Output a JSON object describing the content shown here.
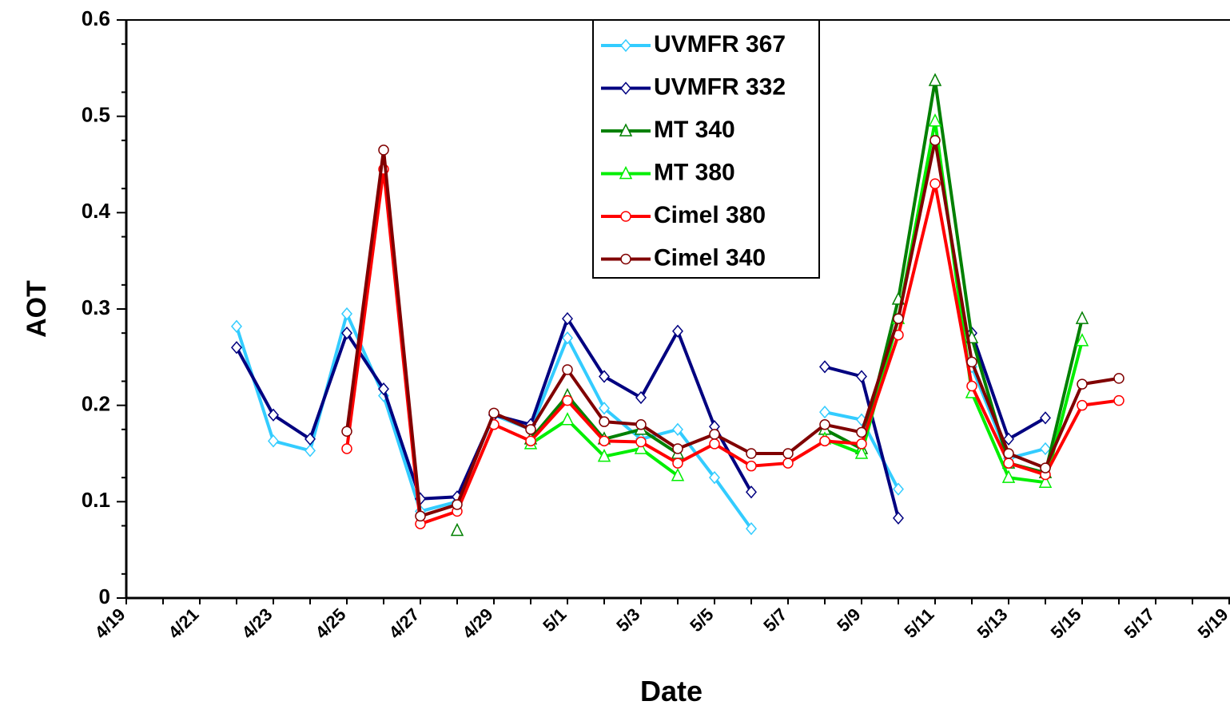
{
  "chart_data": {
    "type": "line",
    "x_label": "Date",
    "y_label": "AOT",
    "categories": [
      "4/19",
      null,
      "4/21",
      null,
      "4/23",
      null,
      "4/25",
      null,
      "4/27",
      null,
      "4/29",
      null,
      "5/1",
      null,
      "5/3",
      null,
      "5/5",
      null,
      "5/7",
      null,
      "5/9",
      null,
      "5/11",
      null,
      "5/13",
      null,
      "5/15",
      null,
      "5/17",
      null,
      "5/19"
    ],
    "ylim": [
      0,
      0.6
    ],
    "yticks": [
      0,
      0.1,
      0.2,
      0.3,
      0.4,
      0.5,
      0.6
    ],
    "legend": "top-center",
    "series": [
      {
        "name": "UVMFR 367",
        "color": "#33ccff",
        "marker": "diamond",
        "values": [
          null,
          null,
          null,
          0.282,
          0.163,
          0.153,
          0.295,
          0.21,
          0.09,
          0.1,
          0.19,
          0.175,
          0.27,
          0.197,
          0.165,
          0.175,
          0.125,
          0.072,
          null,
          0.193,
          0.185,
          0.113,
          null,
          0.24,
          0.145,
          0.155,
          null,
          null,
          null,
          null,
          null
        ]
      },
      {
        "name": "UVMFR 332",
        "color": "#000080",
        "marker": "diamond",
        "values": [
          null,
          null,
          null,
          0.26,
          0.19,
          0.165,
          0.275,
          0.217,
          0.103,
          0.105,
          0.19,
          0.18,
          0.29,
          0.23,
          0.208,
          0.277,
          0.178,
          0.11,
          null,
          0.24,
          0.23,
          0.083,
          null,
          0.275,
          0.165,
          0.187,
          null,
          null,
          null,
          null,
          null
        ]
      },
      {
        "name": "MT 340",
        "color": "#008000",
        "marker": "triangle",
        "values": [
          null,
          null,
          null,
          null,
          null,
          null,
          null,
          null,
          null,
          0.07,
          null,
          0.165,
          0.21,
          0.165,
          0.175,
          0.15,
          null,
          null,
          null,
          0.175,
          0.155,
          0.31,
          0.537,
          0.27,
          0.14,
          0.13,
          0.29,
          null,
          null,
          null,
          null
        ]
      },
      {
        "name": "MT 380",
        "color": "#00ee00",
        "marker": "triangle",
        "values": [
          null,
          null,
          null,
          null,
          null,
          null,
          null,
          null,
          null,
          null,
          null,
          0.16,
          0.185,
          0.147,
          0.155,
          0.127,
          null,
          null,
          null,
          0.165,
          0.15,
          0.29,
          0.495,
          0.213,
          0.125,
          0.12,
          0.267,
          null,
          null,
          null,
          null
        ]
      },
      {
        "name": "Cimel 380",
        "color": "#ff0000",
        "marker": "circle",
        "values": [
          null,
          null,
          null,
          null,
          null,
          null,
          0.155,
          0.445,
          0.077,
          0.09,
          0.18,
          0.163,
          0.205,
          0.163,
          0.162,
          0.14,
          0.16,
          0.137,
          0.14,
          0.163,
          0.16,
          0.273,
          0.43,
          0.22,
          0.14,
          0.128,
          0.2,
          0.205,
          null,
          null,
          null
        ]
      },
      {
        "name": "Cimel 340",
        "color": "#800000",
        "marker": "circle",
        "values": [
          null,
          null,
          null,
          null,
          null,
          null,
          0.173,
          0.465,
          0.085,
          0.097,
          0.192,
          0.175,
          0.237,
          0.183,
          0.18,
          0.155,
          0.17,
          0.15,
          0.15,
          0.18,
          0.172,
          0.29,
          0.475,
          0.245,
          0.15,
          0.135,
          0.222,
          0.228,
          null,
          null,
          null
        ]
      }
    ]
  }
}
